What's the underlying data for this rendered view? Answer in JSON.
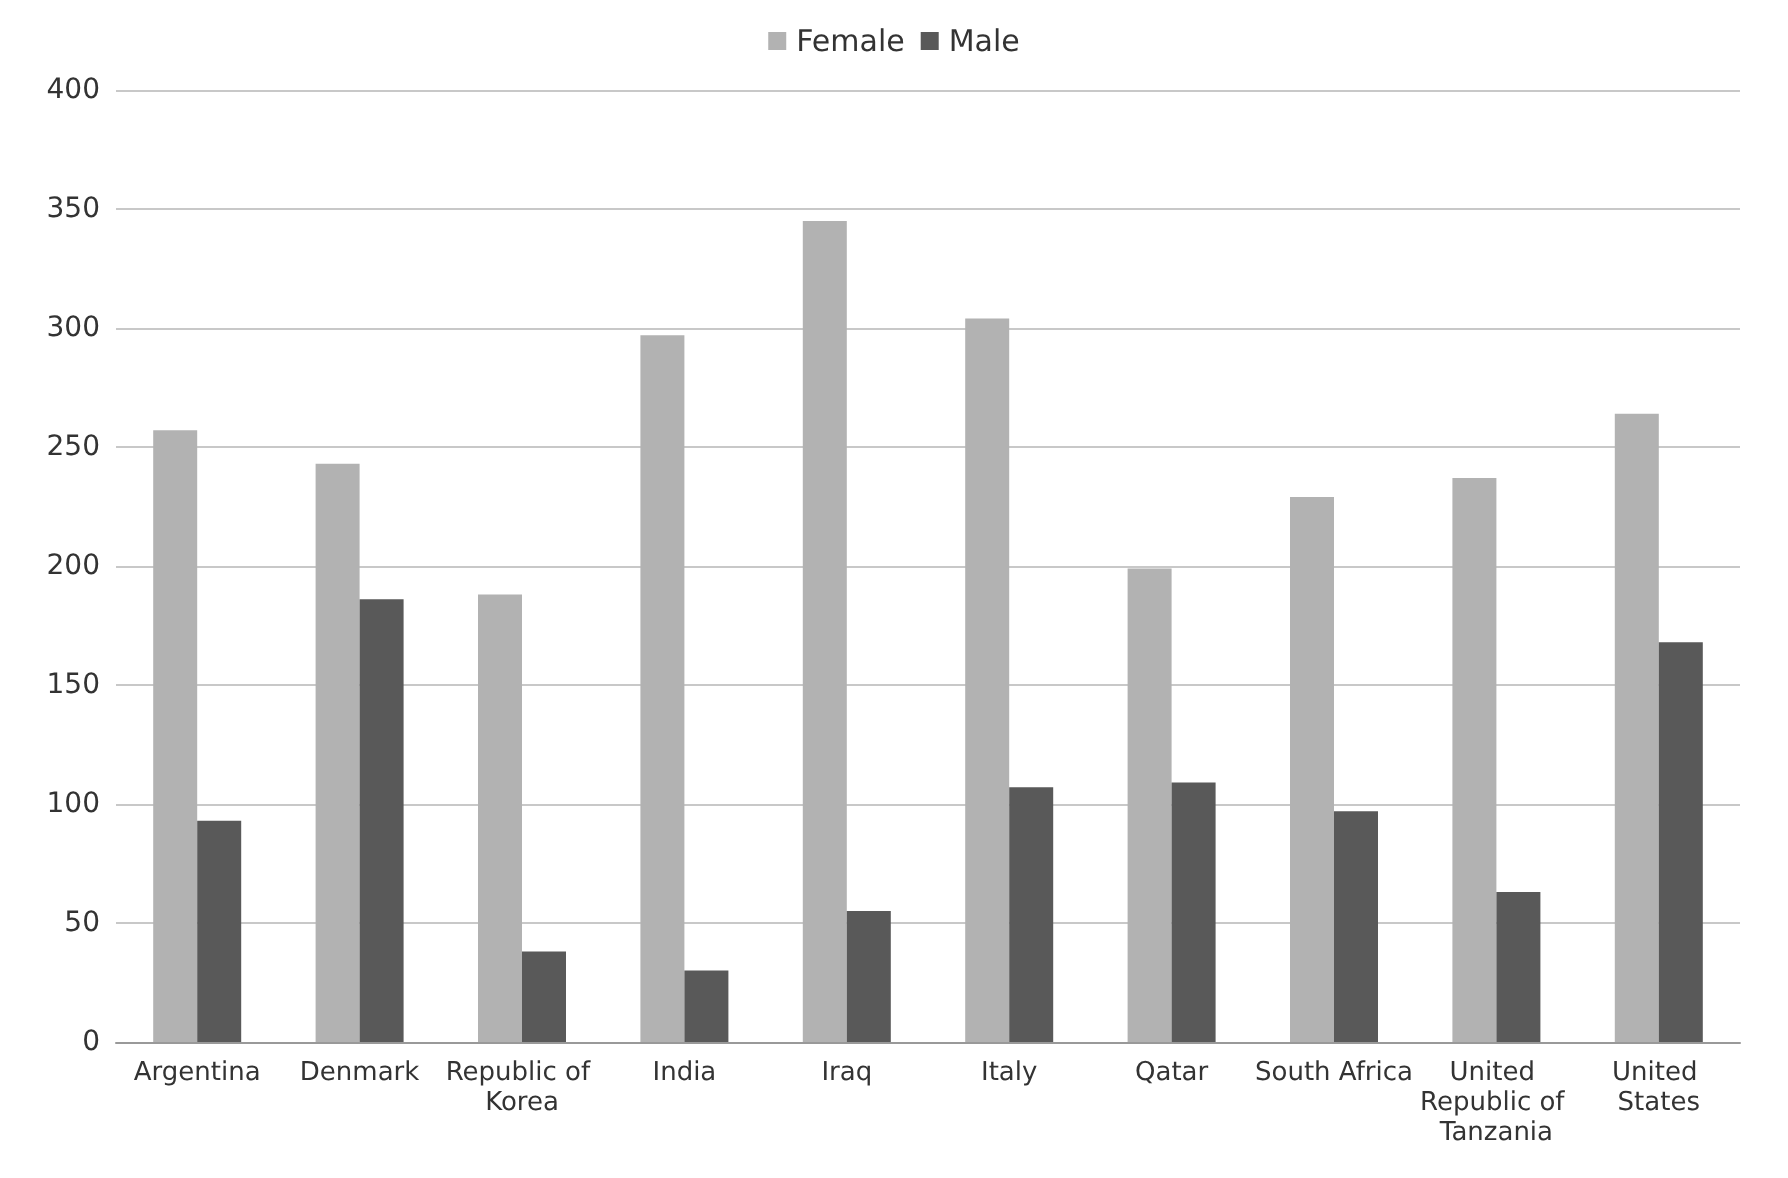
{
  "chart_data": {
    "type": "bar",
    "categories": [
      "Argentina",
      "Denmark",
      "Republic of Korea",
      "India",
      "Iraq",
      "Italy",
      "Qatar",
      "South Africa",
      "United Republic of Tanzania",
      "United States"
    ],
    "series": [
      {
        "name": "Female",
        "color": "#b2b2b2",
        "values": [
          257,
          243,
          188,
          297,
          345,
          304,
          199,
          229,
          237,
          264
        ]
      },
      {
        "name": "Male",
        "color": "#595959",
        "values": [
          93,
          186,
          38,
          30,
          55,
          107,
          109,
          97,
          63,
          168
        ]
      }
    ],
    "ylim": [
      0,
      400
    ],
    "yticks": [
      0,
      50,
      100,
      150,
      200,
      250,
      300,
      350,
      400
    ],
    "grid": "y",
    "legend": "top"
  }
}
